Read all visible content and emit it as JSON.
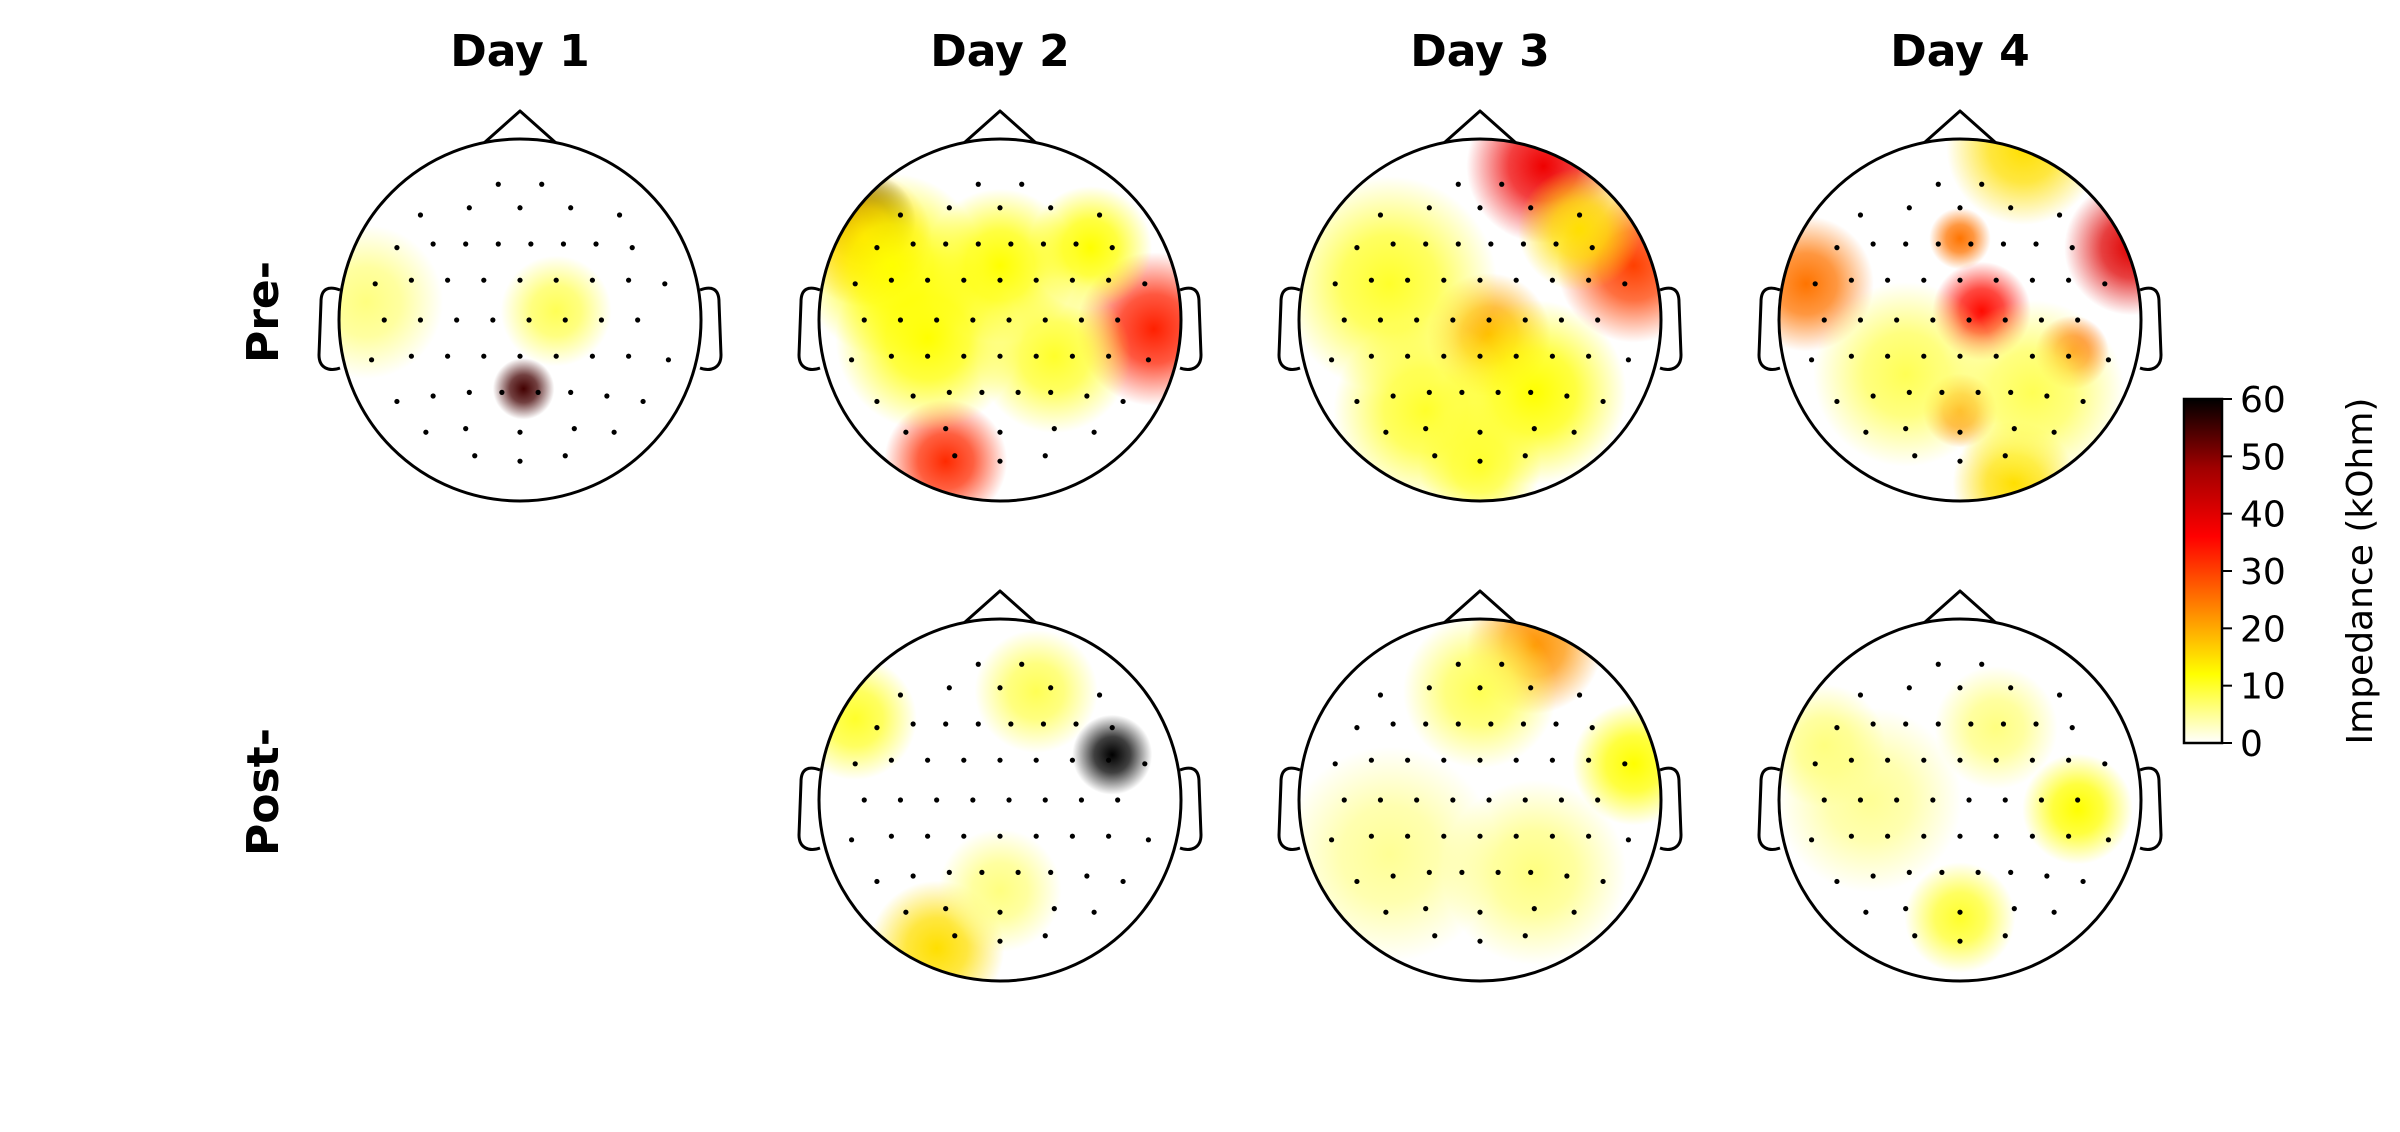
{
  "chart_data": {
    "type": "heatmap",
    "subtype": "eeg-topomap-grid",
    "columns": [
      "Day 1",
      "Day 2",
      "Day 3",
      "Day 4"
    ],
    "rows": [
      "Pre-",
      "Post-"
    ],
    "colorbar": {
      "label": "Impedance (kOhm)",
      "ticks": [
        0,
        10,
        20,
        30,
        40,
        50,
        60
      ],
      "range": [
        0,
        60
      ],
      "colormap": "hot_r",
      "stops": [
        "#ffffff",
        "#ffff00",
        "#ff7f00",
        "#ff0000",
        "#a00000",
        "#000000"
      ]
    },
    "electrode_grid": [
      [
        -0.12,
        -0.75
      ],
      [
        0.12,
        -0.75
      ],
      [
        -0.55,
        -0.58
      ],
      [
        -0.28,
        -0.62
      ],
      [
        0.0,
        -0.62
      ],
      [
        0.28,
        -0.62
      ],
      [
        0.55,
        -0.58
      ],
      [
        -0.68,
        -0.4
      ],
      [
        -0.48,
        -0.42
      ],
      [
        -0.3,
        -0.42
      ],
      [
        -0.12,
        -0.42
      ],
      [
        0.06,
        -0.42
      ],
      [
        0.24,
        -0.42
      ],
      [
        0.42,
        -0.42
      ],
      [
        0.62,
        -0.4
      ],
      [
        -0.8,
        -0.2
      ],
      [
        -0.6,
        -0.22
      ],
      [
        -0.4,
        -0.22
      ],
      [
        -0.2,
        -0.22
      ],
      [
        0.0,
        -0.22
      ],
      [
        0.2,
        -0.22
      ],
      [
        0.4,
        -0.22
      ],
      [
        0.6,
        -0.22
      ],
      [
        0.8,
        -0.2
      ],
      [
        -0.75,
        0.0
      ],
      [
        -0.55,
        0.0
      ],
      [
        -0.35,
        0.0
      ],
      [
        -0.15,
        0.0
      ],
      [
        0.05,
        0.0
      ],
      [
        0.25,
        0.0
      ],
      [
        0.45,
        0.0
      ],
      [
        0.65,
        0.0
      ],
      [
        -0.82,
        0.22
      ],
      [
        -0.6,
        0.2
      ],
      [
        -0.4,
        0.2
      ],
      [
        -0.2,
        0.2
      ],
      [
        0.0,
        0.2
      ],
      [
        0.2,
        0.2
      ],
      [
        0.4,
        0.2
      ],
      [
        0.6,
        0.2
      ],
      [
        0.82,
        0.22
      ],
      [
        -0.68,
        0.45
      ],
      [
        -0.48,
        0.42
      ],
      [
        -0.28,
        0.4
      ],
      [
        -0.1,
        0.4
      ],
      [
        0.1,
        0.4
      ],
      [
        0.28,
        0.4
      ],
      [
        0.48,
        0.42
      ],
      [
        0.68,
        0.45
      ],
      [
        -0.52,
        0.62
      ],
      [
        -0.3,
        0.6
      ],
      [
        0.0,
        0.62
      ],
      [
        0.3,
        0.6
      ],
      [
        0.52,
        0.62
      ],
      [
        -0.25,
        0.75
      ],
      [
        0.0,
        0.78
      ],
      [
        0.25,
        0.75
      ]
    ],
    "panels": [
      {
        "row": "Pre-",
        "column": "Day 1",
        "has_data": true,
        "hotspots": [
          [
            0.02,
            0.38,
            0.1,
            55
          ],
          [
            -0.85,
            -0.1,
            0.25,
            6
          ],
          [
            0.2,
            -0.05,
            0.18,
            8
          ]
        ]
      },
      {
        "row": "Post-",
        "column": "Day 1",
        "has_data": false,
        "hotspots": []
      },
      {
        "row": "Pre-",
        "column": "Day 2",
        "has_data": true,
        "hotspots": [
          [
            -0.72,
            -0.55,
            0.15,
            75
          ],
          [
            -0.75,
            -0.45,
            0.22,
            20
          ],
          [
            0.85,
            0.05,
            0.25,
            33
          ],
          [
            -0.3,
            0.78,
            0.2,
            32
          ],
          [
            0.0,
            -0.3,
            0.25,
            12
          ],
          [
            -0.4,
            0.1,
            0.3,
            12
          ],
          [
            0.3,
            0.2,
            0.25,
            10
          ],
          [
            -0.6,
            -0.3,
            0.3,
            12
          ],
          [
            0.5,
            -0.4,
            0.2,
            12
          ]
        ]
      },
      {
        "row": "Post-",
        "column": "Day 2",
        "has_data": true,
        "hotspots": [
          [
            0.62,
            -0.25,
            0.13,
            80
          ],
          [
            -0.35,
            0.82,
            0.22,
            15
          ],
          [
            -0.8,
            -0.45,
            0.2,
            10
          ],
          [
            0.2,
            -0.6,
            0.2,
            8
          ],
          [
            0.0,
            0.5,
            0.2,
            6
          ]
        ]
      },
      {
        "row": "Pre-",
        "column": "Day 3",
        "has_data": true,
        "hotspots": [
          [
            0.35,
            -0.85,
            0.25,
            38
          ],
          [
            0.85,
            -0.3,
            0.25,
            30
          ],
          [
            0.05,
            0.08,
            0.2,
            20
          ],
          [
            -0.5,
            -0.2,
            0.35,
            10
          ],
          [
            0.3,
            0.4,
            0.3,
            12
          ],
          [
            -0.3,
            0.5,
            0.3,
            10
          ],
          [
            0.0,
            0.8,
            0.2,
            10
          ],
          [
            0.55,
            -0.5,
            0.2,
            15
          ]
        ]
      },
      {
        "row": "Post-",
        "column": "Day 3",
        "has_data": true,
        "hotspots": [
          [
            0.3,
            -0.85,
            0.22,
            22
          ],
          [
            0.85,
            -0.2,
            0.2,
            12
          ],
          [
            0.0,
            -0.6,
            0.25,
            8
          ],
          [
            -0.5,
            0.3,
            0.35,
            5
          ],
          [
            0.3,
            0.4,
            0.3,
            6
          ]
        ]
      },
      {
        "row": "Pre-",
        "column": "Day 4",
        "has_data": true,
        "hotspots": [
          [
            0.12,
            -0.05,
            0.16,
            35
          ],
          [
            0.95,
            -0.4,
            0.22,
            40
          ],
          [
            0.0,
            -0.45,
            0.1,
            25
          ],
          [
            0.0,
            0.5,
            0.12,
            25
          ],
          [
            0.62,
            0.18,
            0.12,
            28
          ],
          [
            -0.85,
            -0.2,
            0.22,
            25
          ],
          [
            0.35,
            -0.95,
            0.25,
            15
          ],
          [
            0.3,
            0.9,
            0.2,
            15
          ],
          [
            -0.3,
            0.3,
            0.3,
            8
          ],
          [
            0.4,
            0.4,
            0.3,
            8
          ]
        ]
      },
      {
        "row": "Post-",
        "column": "Day 4",
        "has_data": true,
        "hotspots": [
          [
            0.65,
            0.05,
            0.18,
            12
          ],
          [
            0.0,
            0.65,
            0.18,
            10
          ],
          [
            -0.5,
            0.0,
            0.3,
            5
          ],
          [
            0.2,
            -0.4,
            0.2,
            6
          ],
          [
            -0.75,
            -0.3,
            0.2,
            6
          ]
        ]
      }
    ]
  }
}
